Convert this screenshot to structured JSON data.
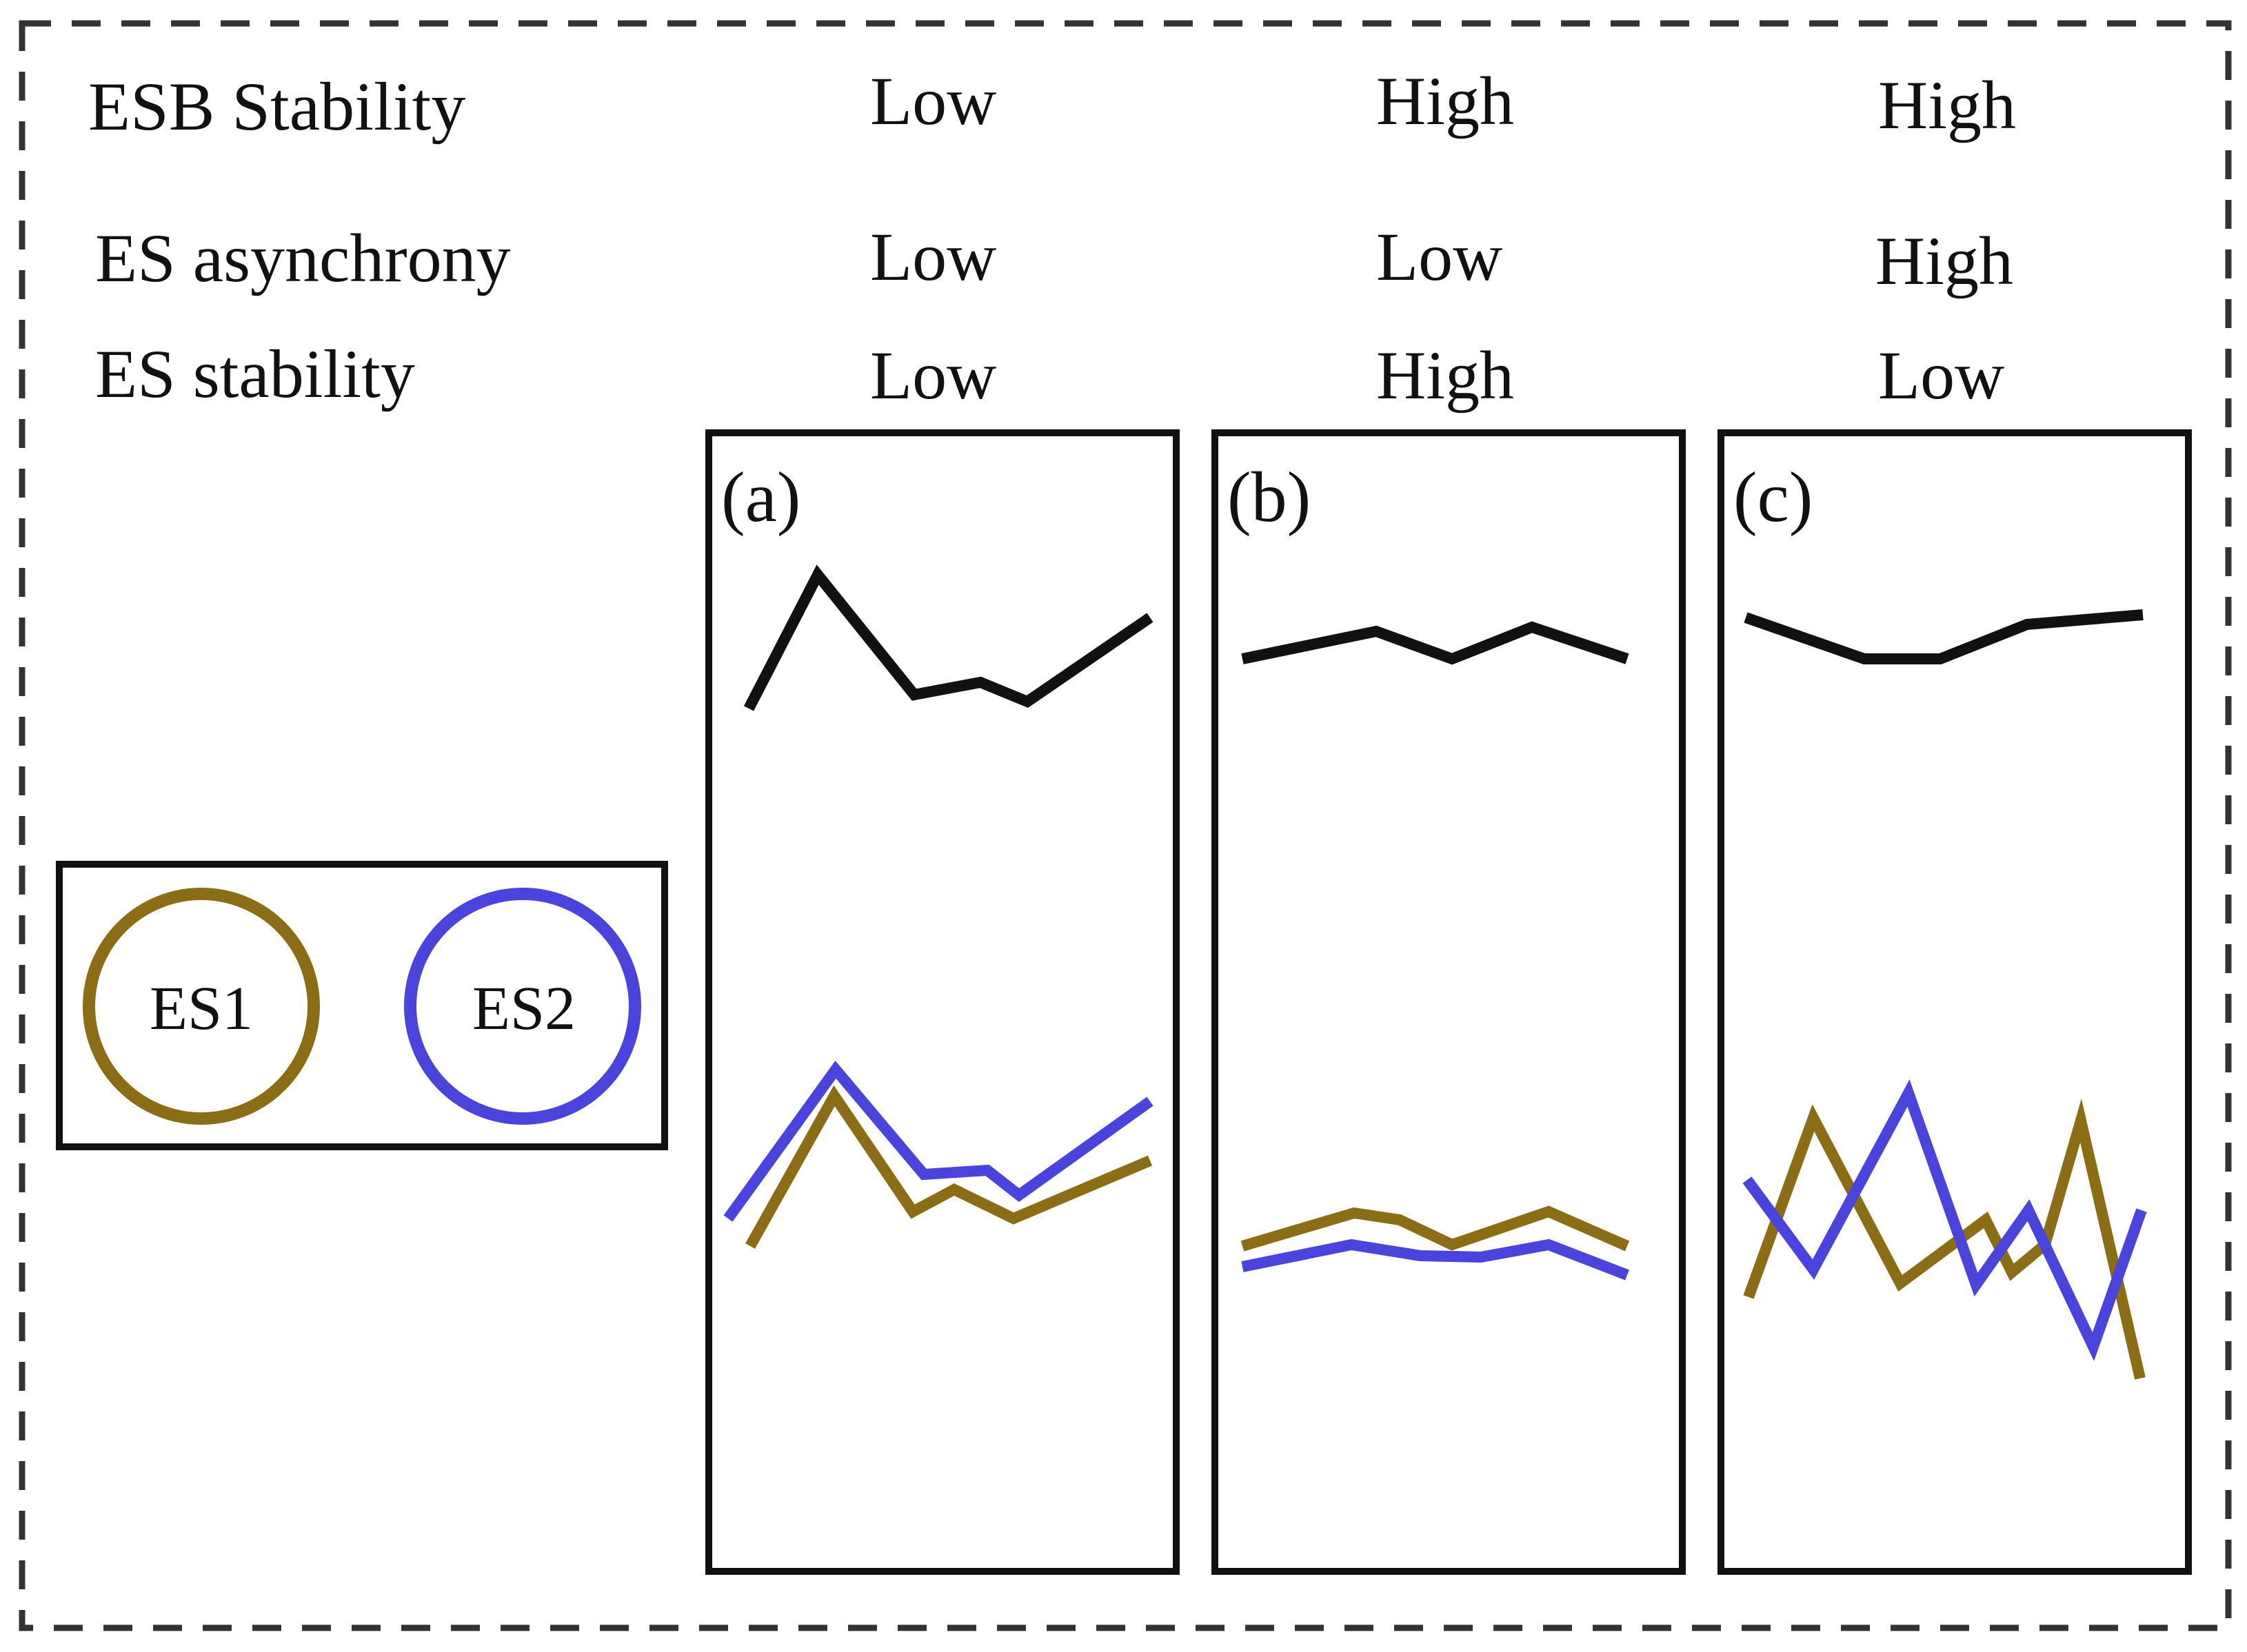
{
  "rows": [
    {
      "key": "esb_stability",
      "label": "ESB Stability",
      "values": [
        "Low",
        "High",
        "High"
      ]
    },
    {
      "key": "es_asynchrony",
      "label": "ES asynchrony",
      "values": [
        "Low",
        "Low",
        "High"
      ]
    },
    {
      "key": "es_stability",
      "label": "ES stability",
      "values": [
        "Low",
        "High",
        "Low"
      ]
    }
  ],
  "panels": [
    {
      "label": "(a)"
    },
    {
      "label": "(b)"
    },
    {
      "label": "(c)"
    }
  ],
  "legend": {
    "es1": {
      "label": "ES1",
      "color": "#8a6d14"
    },
    "es2": {
      "label": "ES2",
      "color": "#4a44dc"
    }
  },
  "colors": {
    "esb_line": "#111111",
    "frame": "#111111",
    "dashed_border": "#333333"
  }
}
